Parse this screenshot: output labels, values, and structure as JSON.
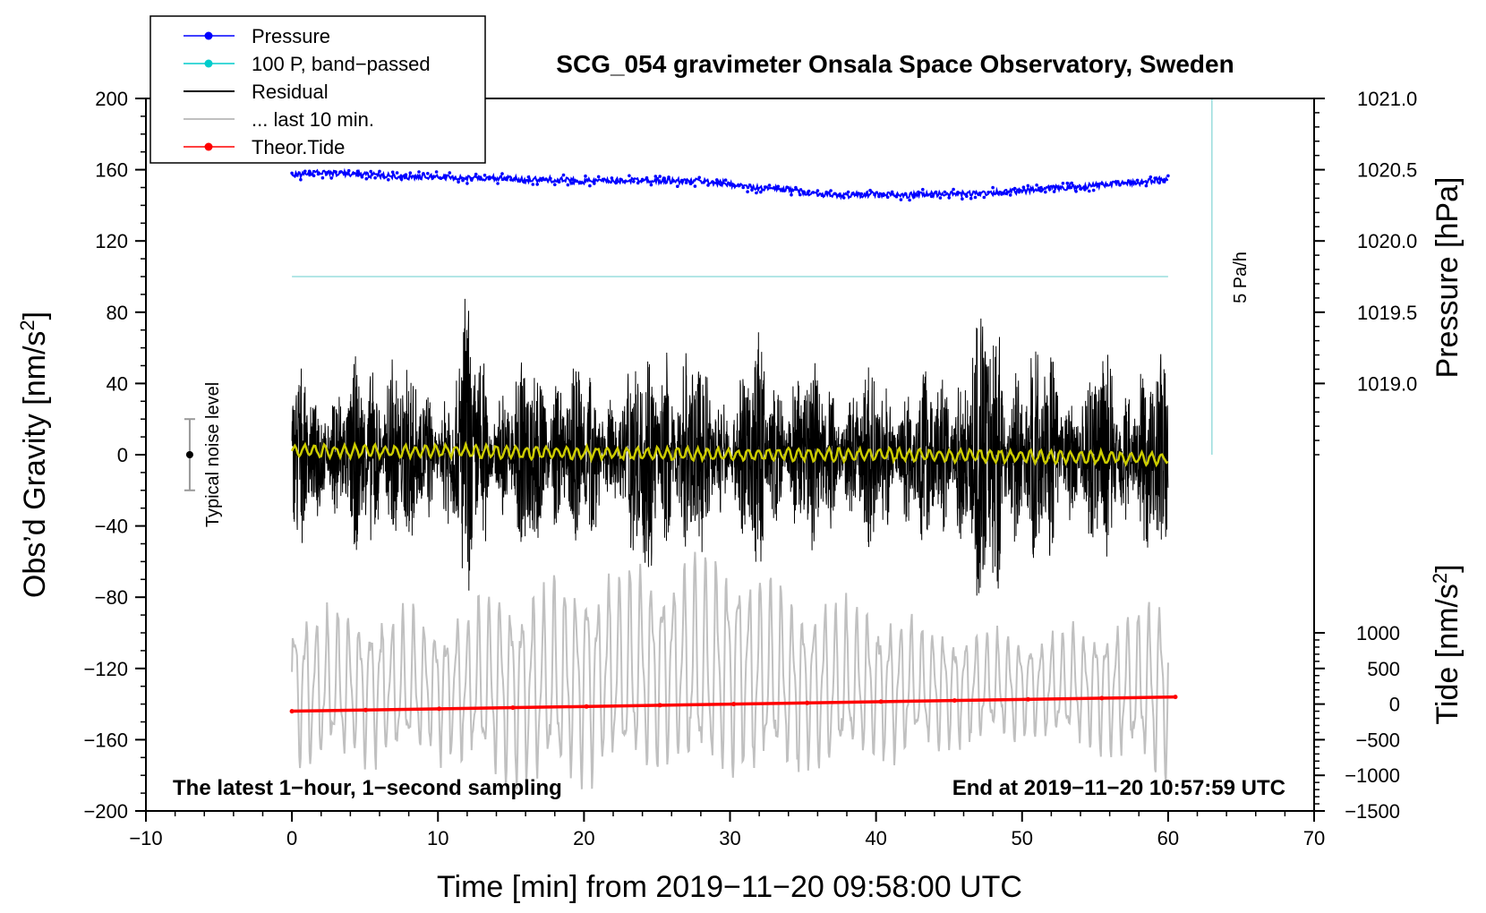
{
  "chart_data": {
    "type": "line",
    "title": "SCG_054 gravimeter Onsala Space Observatory, Sweden",
    "xlabel": "Time [min] from 2019−11−20 09:58:00 UTC",
    "ylabel_left": "Obs’d Gravity [nm/s",
    "ylabel_left_sup": "2",
    "ylabel_left_end": "]",
    "ylabel_right_pressure": "Pressure [hPa]",
    "ylabel_right_tide": "Tide [nm/s",
    "ylabel_right_tide_sup": "2",
    "ylabel_right_tide_end": "]",
    "xlim": [
      -10,
      70
    ],
    "ylim_left": [
      -200,
      200
    ],
    "xticks": [
      -10,
      0,
      10,
      20,
      30,
      40,
      50,
      60,
      70
    ],
    "xtick_labels": [
      "−10",
      "0",
      "10",
      "20",
      "30",
      "40",
      "50",
      "60",
      "70"
    ],
    "yticks_left": [
      200,
      160,
      120,
      80,
      40,
      0,
      -40,
      -80,
      -120,
      -160,
      -200
    ],
    "ytick_labels_left": [
      "200",
      "160",
      "120",
      "80",
      "40",
      "0",
      "−40",
      "−80",
      "−120",
      "−160",
      "−200"
    ],
    "pressure_ticks": [
      1021.0,
      1020.5,
      1020.0,
      1019.5,
      1019.0
    ],
    "pressure_tick_labels": [
      "1021.0",
      "1020.5",
      "1020.0",
      "1019.5",
      "1019.0"
    ],
    "pressure_mapping": {
      "p_at_gravity_0": 1018.5,
      "hpa_per_nm_s2": 0.0125
    },
    "tide_ticks": [
      1000,
      500,
      0,
      -500,
      -1000,
      -1500
    ],
    "tide_tick_labels": [
      "1000",
      "500",
      "0",
      "−500",
      "−1000",
      "−1500"
    ],
    "tide_mapping": {
      "tide_at_gravity_minus200": -1500,
      "tide_units_per_nm_s2": 25
    },
    "legend": {
      "placement": "top-left",
      "entries": [
        {
          "label": "Pressure",
          "color": "#0000ff",
          "marker": true
        },
        {
          "label": "100 P, band−passed",
          "color": "#00cccc",
          "marker": true
        },
        {
          "label": "Residual",
          "color": "#000000",
          "marker": false
        },
        {
          "label": "... last 10 min.",
          "color": "#c0c0c0",
          "marker": false
        },
        {
          "label": "Theor.Tide",
          "color": "#ff0000",
          "marker": true
        }
      ]
    },
    "series": [
      {
        "name": "Pressure",
        "axis": "pressure",
        "color": "#0000ff",
        "x": [
          0,
          2,
          4,
          6,
          8,
          10,
          12,
          14,
          16,
          18,
          20,
          22,
          24,
          26,
          28,
          30,
          32,
          34,
          36,
          38,
          40,
          42,
          44,
          46,
          48,
          50,
          52,
          54,
          56,
          58,
          60
        ],
        "y": [
          1020.46,
          1020.48,
          1020.47,
          1020.46,
          1020.45,
          1020.45,
          1020.44,
          1020.44,
          1020.43,
          1020.43,
          1020.42,
          1020.42,
          1020.43,
          1020.42,
          1020.42,
          1020.4,
          1020.37,
          1020.36,
          1020.33,
          1020.32,
          1020.33,
          1020.32,
          1020.33,
          1020.33,
          1020.34,
          1020.35,
          1020.37,
          1020.38,
          1020.4,
          1020.41,
          1020.44
        ]
      },
      {
        "name": "100 P, band−passed",
        "axis": "gravity",
        "color": "#99dddd",
        "x": [
          0,
          60
        ],
        "y": [
          100,
          100
        ]
      },
      {
        "name": "Residual",
        "axis": "gravity",
        "color": "#000000",
        "envelope_x": [
          0,
          2,
          4,
          6,
          8,
          10,
          12,
          14,
          16,
          18,
          20,
          22,
          24,
          26,
          28,
          30,
          32,
          34,
          36,
          38,
          40,
          42,
          44,
          46,
          48,
          50,
          52,
          54,
          56,
          58,
          60
        ],
        "envelope_amplitude": [
          45,
          50,
          40,
          75,
          45,
          40,
          80,
          45,
          55,
          60,
          50,
          45,
          65,
          75,
          50,
          45,
          65,
          50,
          55,
          45,
          50,
          50,
          45,
          70,
          85,
          60,
          55,
          45,
          60,
          55,
          55
        ]
      },
      {
        "name": "Smoothed residual",
        "axis": "gravity",
        "color": "#cccc00",
        "x": [
          0,
          10,
          20,
          30,
          40,
          50,
          60
        ],
        "y": [
          2,
          2,
          1,
          0,
          0,
          -1,
          -2
        ]
      },
      {
        "name": "... last 10 min.",
        "axis": "gravity",
        "color": "#c0c0c0",
        "envelope_x": [
          0,
          5,
          10,
          15,
          20,
          25,
          30,
          35,
          40,
          45,
          50,
          55,
          60
        ],
        "center": [
          -130,
          -130,
          -130,
          -130,
          -125,
          -120,
          -120,
          -130,
          -130,
          -130,
          -130,
          -130,
          -130
        ],
        "envelope_amplitude": [
          45,
          45,
          40,
          55,
          60,
          60,
          65,
          50,
          45,
          35,
          30,
          35,
          55
        ]
      },
      {
        "name": "Theor.Tide",
        "axis": "tide",
        "color": "#ff0000",
        "x": [
          0,
          60.5
        ],
        "y": [
          -100,
          100
        ]
      }
    ],
    "annotations": {
      "noise_label": "Typical noise level",
      "noise_bar": {
        "x": -7,
        "y": 0,
        "ymin": -20,
        "ymax": 20
      },
      "rate_label": "5 Pa/h",
      "rate_bar": {
        "x": 63,
        "ymin": 0,
        "ymax": 200
      },
      "bottom_left": "The latest 1−hour, 1−second sampling",
      "bottom_right": "End at 2019−11−20 10:57:59 UTC"
    }
  }
}
